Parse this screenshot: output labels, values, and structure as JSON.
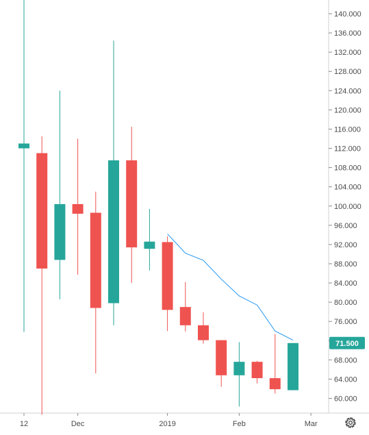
{
  "colors": {
    "up": "#26a69a",
    "down": "#ef5350",
    "ma_line": "#2196f3",
    "axis_text": "#4a4a4a",
    "axis_line": "#d0d0d0",
    "price_badge_bg": "#26a69a",
    "price_badge_text": "#ffffff"
  },
  "chart_data": {
    "type": "candlestick",
    "title": "",
    "xlabel": "",
    "ylabel": "",
    "ylim": [
      56.6,
      143.0
    ],
    "grid": false,
    "y_ticks": [
      "60.000",
      "64.000",
      "68.000",
      "72.000",
      "76.000",
      "80.000",
      "84.000",
      "88.000",
      "92.000",
      "96.000",
      "100.000",
      "104.000",
      "108.000",
      "112.000",
      "116.000",
      "120.000",
      "124.000",
      "128.000",
      "132.000",
      "136.000",
      "140.000"
    ],
    "x_tick_labels": [
      {
        "label": "12",
        "at_candle": 0
      },
      {
        "label": "Dec",
        "at_candle": 3
      },
      {
        "label": "2019",
        "at_candle": 8
      },
      {
        "label": "Feb",
        "at_candle": 12
      },
      {
        "label": "Mar",
        "at_candle": 16
      }
    ],
    "candles": [
      {
        "open": 112.0,
        "high": 143.0,
        "low": 73.8,
        "close": 113.0
      },
      {
        "open": 111.0,
        "high": 114.5,
        "low": 56.6,
        "close": 87.0
      },
      {
        "open": 88.8,
        "high": 124.0,
        "low": 80.6,
        "close": 100.4
      },
      {
        "open": 100.4,
        "high": 114.0,
        "low": 85.7,
        "close": 98.4
      },
      {
        "open": 98.6,
        "high": 103.0,
        "low": 65.2,
        "close": 78.8
      },
      {
        "open": 79.8,
        "high": 134.4,
        "low": 75.2,
        "close": 109.5
      },
      {
        "open": 109.5,
        "high": 116.5,
        "low": 84.0,
        "close": 91.4
      },
      {
        "open": 91.1,
        "high": 99.4,
        "low": 86.6,
        "close": 92.6
      },
      {
        "open": 92.5,
        "high": 93.7,
        "low": 74.0,
        "close": 78.4
      },
      {
        "open": 79.0,
        "high": 84.2,
        "low": 73.9,
        "close": 75.2
      },
      {
        "open": 75.2,
        "high": 77.9,
        "low": 71.4,
        "close": 72.1
      },
      {
        "open": 72.1,
        "high": 72.1,
        "low": 62.4,
        "close": 64.8
      },
      {
        "open": 64.8,
        "high": 71.7,
        "low": 58.3,
        "close": 67.6
      },
      {
        "open": 67.6,
        "high": 67.8,
        "low": 63.1,
        "close": 64.2
      },
      {
        "open": 64.2,
        "high": 73.4,
        "low": 61.0,
        "close": 61.9
      },
      {
        "open": 61.7,
        "high": 71.5,
        "low": 61.7,
        "close": 71.5
      }
    ],
    "moving_average": {
      "start_candle": 8,
      "values": [
        94.2,
        90.2,
        88.7,
        84.8,
        81.3,
        79.4,
        74.0,
        72.1
      ]
    },
    "last_price": "71.500"
  }
}
